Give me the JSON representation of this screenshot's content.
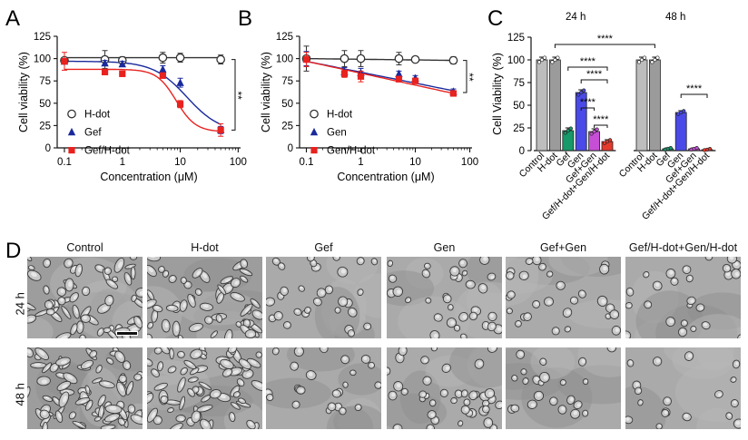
{
  "panel_letters": {
    "a": "A",
    "b": "B",
    "c": "C",
    "d": "D"
  },
  "chart_data": [
    {
      "id": "A",
      "type": "scatter",
      "title": "",
      "xlabel": "Concentration (μM)",
      "ylabel": "Cell viability (%)",
      "xscale": "log",
      "xlim": [
        0.075,
        110
      ],
      "ylim": [
        0,
        125
      ],
      "xticks": [
        0.1,
        1,
        10,
        100
      ],
      "xtick_labels": [
        "0.1",
        "1",
        "10",
        "100"
      ],
      "yticks": [
        0,
        25,
        50,
        75,
        100,
        125
      ],
      "ytick_labels": [
        "0",
        "25",
        "50",
        "75",
        "100",
        "125"
      ],
      "legend_position": "bottom-left",
      "significance": "**",
      "series": [
        {
          "name": "H-dot",
          "marker": "circle-open",
          "color": "#333333",
          "x": [
            0.1,
            0.5,
            1,
            5,
            10,
            50
          ],
          "y": [
            98,
            99,
            98,
            101,
            101,
            99
          ],
          "err": [
            3,
            10,
            4,
            6,
            5,
            5
          ],
          "fit": {
            "top": 101,
            "bottom": 101,
            "ic50": 10,
            "hill": 1
          }
        },
        {
          "name": "Gef",
          "marker": "triangle",
          "color": "#1a2a9c",
          "x": [
            0.1,
            0.5,
            1,
            5,
            10,
            50
          ],
          "y": [
            97,
            95,
            94,
            88,
            73,
            20
          ],
          "err": [
            3,
            3,
            3,
            4,
            5,
            4
          ],
          "fit": {
            "top": 97,
            "bottom": 17,
            "ic50": 13.0,
            "hill": 1.5
          }
        },
        {
          "name": "Gef/H-dot",
          "marker": "square",
          "color": "#e8221f",
          "x": [
            0.1,
            0.5,
            1,
            5,
            10,
            50
          ],
          "y": [
            97,
            85,
            83,
            81,
            49,
            20
          ],
          "err": [
            10,
            3,
            3,
            3,
            4,
            7
          ],
          "fit": {
            "top": 88,
            "bottom": 18,
            "ic50": 8.5,
            "hill": 2.6
          }
        }
      ]
    },
    {
      "id": "B",
      "type": "scatter",
      "title": "",
      "xlabel": "Concentration (μM)",
      "ylabel": "Cell viability (%)",
      "xscale": "log",
      "xlim": [
        0.075,
        110
      ],
      "ylim": [
        0,
        125
      ],
      "xticks": [
        0.1,
        1,
        10,
        100
      ],
      "xtick_labels": [
        "0.1",
        "1",
        "10",
        "100"
      ],
      "yticks": [
        0,
        25,
        50,
        75,
        100,
        125
      ],
      "ytick_labels": [
        "0",
        "25",
        "50",
        "75",
        "100",
        "125"
      ],
      "legend_position": "bottom-left",
      "significance": "**",
      "series": [
        {
          "name": "H-dot",
          "marker": "circle-open",
          "color": "#333333",
          "x": [
            0.1,
            0.5,
            1,
            5,
            10,
            50
          ],
          "y": [
            100,
            100,
            100,
            100,
            99,
            98
          ],
          "err": [
            14,
            9,
            9,
            7,
            2,
            4
          ],
          "fit": {
            "top": 100,
            "bottom": 98,
            "ic50": 10,
            "hill": 1,
            "linear": true
          }
        },
        {
          "name": "Gen",
          "marker": "triangle",
          "color": "#1a2a9c",
          "x": [
            0.1,
            0.5,
            1,
            5,
            10,
            50
          ],
          "y": [
            100,
            85,
            84,
            83,
            78,
            63
          ],
          "err": [
            8,
            5,
            5,
            3,
            3,
            3
          ],
          "fit": {
            "linear": true,
            "y_start": 97,
            "y_end": 64
          }
        },
        {
          "name": "Gen/H-dot",
          "marker": "square",
          "color": "#e8221f",
          "x": [
            0.1,
            0.5,
            1,
            5,
            10,
            50
          ],
          "y": [
            99,
            83,
            80,
            77,
            75,
            61
          ],
          "err": [
            8,
            4,
            6,
            3,
            3,
            3
          ],
          "fit": {
            "linear": true,
            "y_start": 97,
            "y_end": 61
          }
        }
      ]
    },
    {
      "id": "C",
      "type": "bar",
      "title": "",
      "xlabel": "",
      "ylabel": "Cell Viability (%)",
      "ylim": [
        0,
        125
      ],
      "yticks": [
        0,
        25,
        50,
        75,
        100,
        125
      ],
      "ytick_labels": [
        "0",
        "25",
        "50",
        "75",
        "100",
        "125"
      ],
      "groups": [
        {
          "label": "24 h",
          "categories": [
            "Control",
            "H-dot",
            "Gef",
            "Gen",
            "Gef+Gen",
            "Gef/H-dot+Gen/H-dot"
          ],
          "values": [
            100,
            100,
            22,
            64,
            21,
            10
          ],
          "err": [
            3,
            3,
            3,
            3,
            3,
            2
          ],
          "colors": [
            "#bdbdbd",
            "#9b9b9b",
            "#17996a",
            "#4a4ae8",
            "#c64fd6",
            "#e63a2e"
          ]
        },
        {
          "label": "48 h",
          "categories": [
            "Control",
            "H-dot",
            "Gef",
            "Gen",
            "Gef+Gen",
            "Gef/H-dot+Gen/H-dot"
          ],
          "values": [
            100,
            100,
            2,
            42,
            2,
            1
          ],
          "err": [
            3,
            3,
            1,
            2,
            1,
            1
          ],
          "colors": [
            "#bdbdbd",
            "#9b9b9b",
            "#17996a",
            "#4a4ae8",
            "#c64fd6",
            "#e63a2e"
          ]
        }
      ],
      "significance_label": "****"
    }
  ],
  "panel_d": {
    "columns": [
      "Control",
      "H-dot",
      "Gef",
      "Gen",
      "Gef+Gen",
      "Gef/H-dot+Gen/H-dot"
    ],
    "rows": [
      "24 h",
      "48 h"
    ]
  }
}
